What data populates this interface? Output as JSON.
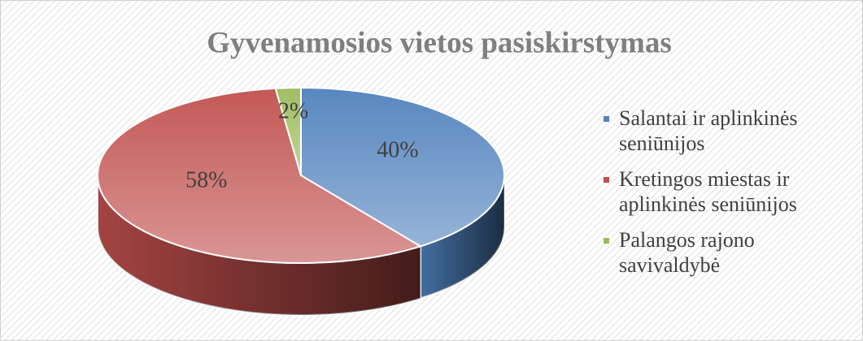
{
  "chart_data": {
    "type": "pie",
    "title": "Gyvenamosios vietos pasiskirstymas",
    "categories": [
      "Salantai ir aplinkinės seniūnijos",
      "Kretingos miestas ir aplinkinės seniūnijos",
      "Palangos rajono savivaldybė"
    ],
    "values": [
      40,
      58,
      2
    ],
    "value_labels": [
      "40%",
      "58%",
      "2%"
    ],
    "colors": [
      "#4f81bd",
      "#c0504d",
      "#9bbb59"
    ],
    "legend": "right"
  }
}
